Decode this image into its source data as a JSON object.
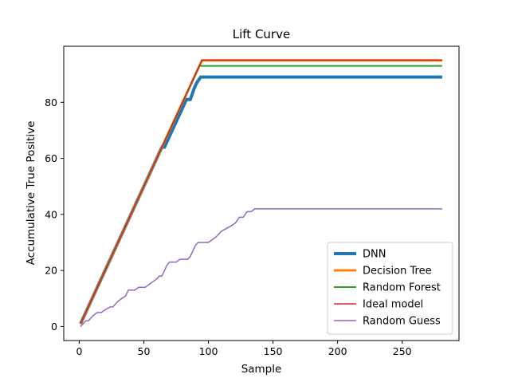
{
  "chart_data": {
    "type": "line",
    "title": "Lift Curve",
    "xlabel": "Sample",
    "ylabel": "Accumulative True Positive",
    "xlim": [
      -12,
      294
    ],
    "ylim": [
      -5,
      100
    ],
    "xticks": [
      0,
      50,
      100,
      150,
      200,
      250
    ],
    "yticks": [
      0,
      20,
      40,
      60,
      80
    ],
    "grid": false,
    "legend_position": "lower-right",
    "series": [
      {
        "name": "DNN",
        "color": "#1f77b4",
        "linewidth": 4,
        "x": [
          1,
          64,
          66,
          83,
          86,
          89,
          91,
          94,
          281
        ],
        "y": [
          1,
          64,
          64,
          81,
          81,
          85,
          87,
          89,
          89
        ]
      },
      {
        "name": "Decision Tree",
        "color": "#ff7f0e",
        "linewidth": 3,
        "x": [
          1,
          95,
          281
        ],
        "y": [
          1,
          95,
          95
        ]
      },
      {
        "name": "Random Forest",
        "color": "#2ca02c",
        "linewidth": 2,
        "x": [
          1,
          93,
          281
        ],
        "y": [
          1,
          93,
          93
        ]
      },
      {
        "name": "Ideal model",
        "color": "#d62728",
        "linewidth": 1.5,
        "x": [
          1,
          95,
          281
        ],
        "y": [
          1,
          95,
          95
        ]
      },
      {
        "name": "Random Guess",
        "color": "#9467bd",
        "linewidth": 1.5,
        "x": [
          1,
          3,
          5,
          7,
          9,
          11,
          14,
          17,
          20,
          24,
          26,
          30,
          33,
          36,
          38,
          41,
          43,
          46,
          48,
          51,
          54,
          57,
          60,
          62,
          64,
          66,
          68,
          70,
          72,
          75,
          78,
          81,
          84,
          86,
          88,
          90,
          92,
          95,
          98,
          100,
          103,
          106,
          110,
          114,
          118,
          121,
          124,
          127,
          130,
          133,
          136,
          140,
          150,
          170,
          200,
          230,
          260,
          281
        ],
        "y": [
          0,
          1,
          2,
          2,
          3,
          4,
          5,
          5,
          6,
          7,
          7,
          9,
          10,
          11,
          13,
          13,
          13,
          14,
          14,
          14,
          15,
          16,
          17,
          18,
          18,
          20,
          22,
          23,
          23,
          23,
          24,
          24,
          24,
          25,
          27,
          29,
          30,
          30,
          30,
          30,
          31,
          32,
          34,
          35,
          36,
          37,
          39,
          39,
          41,
          41,
          42,
          42,
          42,
          42,
          42,
          42,
          42,
          42
        ]
      }
    ]
  }
}
